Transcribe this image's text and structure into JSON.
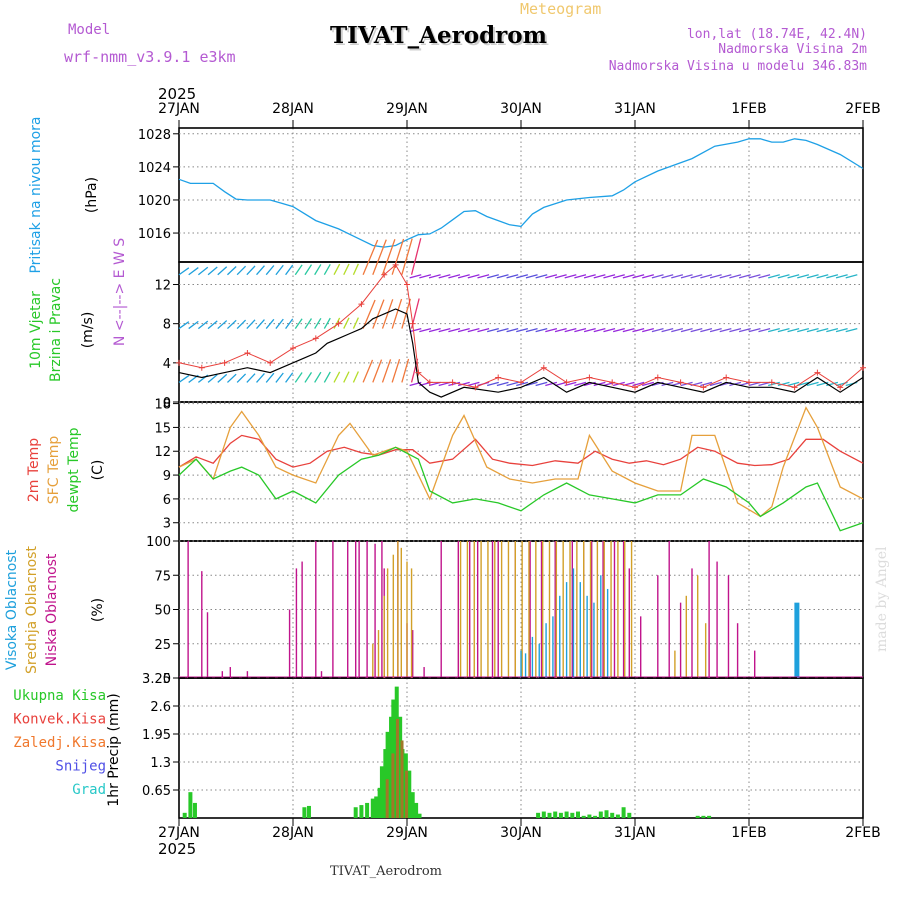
{
  "header": {
    "title": "TIVAT_Aerodrom",
    "subtitle": "Meteogram",
    "model_label": "Model",
    "model_name": "wrf-nmm_v3.9.1  e3km",
    "lonlat": "lon,lat (18.74E, 42.4N)",
    "elev": "Nadmorska Visina 2m",
    "elev_model": "Nadmorska Visina u modelu 346.83m",
    "year": "2025",
    "footer": "TIVAT_Aerodrom",
    "credit": "made by Angel"
  },
  "colors": {
    "pressure": "#1ea0e6",
    "temp2m": "#e8413c",
    "sfc": "#e6a03c",
    "dewpt": "#28c828",
    "windspeed": "#000000",
    "low": "#c0148c",
    "mid": "#d2a028",
    "high": "#1ea0dc",
    "total": "#28c828",
    "conv": "#e8413c",
    "strat": "#f0782d",
    "snow": "#5050e6",
    "grad": "#28c8c8"
  },
  "chart_data": [
    {
      "type": "line",
      "panel": "pressure",
      "ylabel": "Pritisak na nivou mora",
      "unit": "(hPa)",
      "yticks": [
        1016,
        1020,
        1024,
        1028
      ],
      "ylim": [
        1012.5,
        1028.7
      ],
      "xtick_labels": [
        "27JAN",
        "28JAN",
        "29JAN",
        "30JAN",
        "31JAN",
        "1FEB",
        "2FEB"
      ],
      "xlim_days": [
        0,
        6
      ],
      "x": [
        0,
        0.1,
        0.2,
        0.3,
        0.4,
        0.5,
        0.6,
        0.7,
        0.8,
        0.9,
        1.0,
        1.2,
        1.4,
        1.55,
        1.7,
        1.8,
        1.9,
        2.0,
        2.1,
        2.2,
        2.3,
        2.4,
        2.5,
        2.6,
        2.7,
        2.8,
        2.9,
        3.0,
        3.1,
        3.2,
        3.4,
        3.6,
        3.8,
        3.9,
        4.0,
        4.2,
        4.3,
        4.5,
        4.7,
        4.9,
        5.0,
        5.1,
        5.2,
        5.3,
        5.4,
        5.5,
        5.6,
        5.8,
        6.0
      ],
      "values": [
        1022.5,
        1022.0,
        1022.0,
        1022.0,
        1021.0,
        1020.1,
        1020.0,
        1020.0,
        1020.0,
        1019.6,
        1019.2,
        1017.5,
        1016.5,
        1015.5,
        1014.5,
        1014.3,
        1014.5,
        1015.2,
        1015.8,
        1015.9,
        1016.6,
        1017.6,
        1018.6,
        1018.7,
        1018.0,
        1017.5,
        1017.0,
        1016.8,
        1018.3,
        1019.1,
        1020.0,
        1020.3,
        1020.5,
        1021.2,
        1022.2,
        1023.5,
        1024.0,
        1025.0,
        1026.5,
        1027.0,
        1027.4,
        1027.4,
        1027.0,
        1027.0,
        1027.4,
        1027.2,
        1026.7,
        1025.5,
        1023.8
      ]
    },
    {
      "type": "line",
      "panel": "wind",
      "ylabel": "10m Vjetar Brzina i Pravac",
      "unit": "(m/s)",
      "yticks": [
        0,
        4,
        8,
        12
      ],
      "ylim": [
        0,
        14.3
      ],
      "legend_compass": "N <--|--> E W S",
      "series": [
        {
          "name": "wind speed",
          "x": [
            0,
            0.2,
            0.4,
            0.6,
            0.8,
            0.9,
            1.0,
            1.1,
            1.2,
            1.3,
            1.4,
            1.5,
            1.6,
            1.7,
            1.8,
            1.9,
            2.0,
            2.05,
            2.1,
            2.2,
            2.3,
            2.5,
            2.8,
            3.0,
            3.2,
            3.4,
            3.6,
            3.8,
            4.0,
            4.2,
            4.4,
            4.6,
            4.8,
            5.0,
            5.2,
            5.4,
            5.6,
            5.8,
            6.0
          ],
          "values": [
            3.0,
            2.5,
            3.0,
            3.5,
            3.0,
            3.5,
            4.0,
            4.5,
            5.0,
            6.0,
            6.5,
            7.0,
            7.5,
            8.5,
            9.0,
            9.5,
            9.0,
            6.0,
            2.0,
            1.0,
            0.5,
            1.5,
            1.0,
            1.5,
            2.5,
            1.0,
            2.0,
            1.5,
            1.0,
            2.0,
            1.5,
            1.0,
            2.0,
            1.5,
            1.5,
            1.0,
            2.5,
            1.0,
            2.5
          ]
        },
        {
          "name": "gust",
          "x": [
            0,
            0.2,
            0.4,
            0.6,
            0.8,
            1.0,
            1.2,
            1.4,
            1.6,
            1.8,
            1.9,
            2.0,
            2.05,
            2.1,
            2.2,
            2.4,
            2.6,
            2.8,
            3.0,
            3.2,
            3.4,
            3.6,
            3.8,
            4.0,
            4.2,
            4.4,
            4.6,
            4.8,
            5.0,
            5.2,
            5.4,
            5.6,
            5.8,
            6.0
          ],
          "values": [
            4.0,
            3.5,
            4.0,
            5.0,
            4.0,
            5.5,
            6.5,
            8.0,
            10.0,
            13.0,
            14.0,
            12.0,
            8.0,
            3.0,
            2.0,
            2.0,
            1.5,
            2.5,
            2.0,
            3.5,
            2.0,
            2.5,
            2.0,
            1.5,
            2.5,
            2.0,
            1.5,
            2.5,
            2.0,
            2.0,
            1.5,
            3.0,
            1.5,
            3.5
          ]
        }
      ],
      "barb_rows_ms": [
        2,
        7.5,
        13
      ]
    },
    {
      "type": "line",
      "panel": "temperature",
      "ylabel": "2m Temp / SFC Temp / dewpt Temp",
      "unit": "(C)",
      "yticks": [
        3,
        6,
        9,
        12,
        15,
        18
      ],
      "ylim": [
        0.7,
        18.2
      ],
      "series": [
        {
          "name": "2m Temp",
          "x": [
            0,
            0.15,
            0.3,
            0.45,
            0.55,
            0.7,
            0.85,
            1.0,
            1.15,
            1.3,
            1.45,
            1.6,
            1.75,
            1.9,
            2.05,
            2.2,
            2.4,
            2.6,
            2.75,
            2.9,
            3.1,
            3.3,
            3.5,
            3.65,
            3.8,
            3.95,
            4.1,
            4.25,
            4.4,
            4.55,
            4.7,
            4.9,
            5.05,
            5.2,
            5.35,
            5.5,
            5.65,
            5.8,
            6.0
          ],
          "values": [
            10.0,
            11.3,
            10.5,
            13.0,
            14.0,
            13.5,
            11.0,
            10.0,
            10.5,
            12.0,
            12.5,
            11.8,
            11.5,
            12.2,
            12.2,
            10.5,
            11.0,
            13.5,
            11.0,
            10.5,
            10.2,
            10.8,
            10.5,
            12.0,
            11.0,
            10.5,
            10.8,
            10.3,
            11.0,
            12.5,
            12.0,
            10.5,
            10.2,
            10.3,
            11.0,
            13.5,
            13.5,
            12.0,
            10.5
          ]
        },
        {
          "name": "SFC Temp",
          "x": [
            0,
            0.15,
            0.3,
            0.45,
            0.55,
            0.7,
            0.85,
            1.0,
            1.2,
            1.4,
            1.5,
            1.7,
            1.9,
            2.0,
            2.2,
            2.4,
            2.5,
            2.7,
            2.9,
            3.1,
            3.3,
            3.5,
            3.6,
            3.8,
            4.0,
            4.2,
            4.4,
            4.5,
            4.7,
            4.9,
            5.1,
            5.2,
            5.3,
            5.5,
            5.6,
            5.8,
            6.0
          ],
          "values": [
            10.0,
            11.0,
            8.5,
            15.0,
            17.0,
            14.0,
            10.0,
            9.0,
            8.0,
            14.0,
            15.5,
            11.5,
            12.5,
            12.0,
            6.0,
            14.0,
            16.5,
            10.0,
            8.5,
            8.0,
            8.5,
            8.5,
            14.0,
            9.5,
            8.0,
            7.0,
            7.0,
            14.0,
            14.0,
            5.5,
            3.8,
            5.0,
            10.0,
            17.5,
            15.0,
            7.5,
            6.0
          ]
        },
        {
          "name": "dewpt Temp",
          "x": [
            0,
            0.15,
            0.3,
            0.45,
            0.55,
            0.7,
            0.85,
            1.0,
            1.2,
            1.4,
            1.6,
            1.75,
            1.9,
            2.1,
            2.2,
            2.4,
            2.6,
            2.8,
            3.0,
            3.2,
            3.4,
            3.6,
            3.8,
            4.0,
            4.2,
            4.4,
            4.6,
            4.8,
            5.0,
            5.1,
            5.3,
            5.5,
            5.6,
            5.8,
            6.0
          ],
          "values": [
            9.0,
            11.0,
            8.5,
            9.5,
            10.0,
            9.0,
            6.0,
            7.0,
            5.5,
            9.0,
            11.0,
            11.5,
            12.5,
            11.0,
            7.0,
            5.5,
            6.0,
            5.5,
            4.5,
            6.5,
            8.0,
            6.5,
            6.0,
            5.5,
            6.5,
            6.5,
            8.5,
            7.5,
            5.5,
            3.8,
            5.5,
            7.5,
            8.0,
            2.0,
            3.0
          ]
        }
      ]
    },
    {
      "type": "bar",
      "panel": "clouds",
      "ylabel": "Visoka Oblacnost / Srednja Oblacnost / Niska Oblacnost",
      "unit": "(%)",
      "yticks": [
        0,
        25,
        50,
        75,
        100
      ],
      "ylim": [
        0,
        100
      ],
      "series": [
        {
          "name": "Niska Oblacnost",
          "x": [
            0.08,
            0.2,
            0.25,
            0.38,
            0.45,
            0.6,
            0.97,
            1.03,
            1.08,
            1.2,
            1.25,
            1.35,
            1.48,
            1.55,
            1.58,
            1.65,
            1.72,
            1.78,
            1.8,
            1.92,
            2.0,
            2.05,
            2.15,
            2.3,
            2.45,
            2.55,
            2.62,
            2.75,
            2.8,
            2.95,
            3.08,
            3.18,
            3.3,
            3.45,
            3.55,
            3.62,
            3.72,
            3.82,
            3.9,
            3.95,
            4.05,
            4.2,
            4.3,
            4.4,
            4.5,
            4.65,
            4.72,
            4.82,
            4.9,
            5.05
          ],
          "values": [
            100,
            78,
            48,
            5,
            8,
            5,
            50,
            80,
            85,
            100,
            5,
            100,
            100,
            100,
            100,
            100,
            98,
            100,
            80,
            100,
            40,
            35,
            8,
            100,
            100,
            100,
            100,
            100,
            100,
            100,
            100,
            100,
            100,
            100,
            100,
            100,
            100,
            100,
            100,
            80,
            45,
            75,
            100,
            55,
            80,
            100,
            85,
            75,
            40,
            20
          ]
        },
        {
          "name": "Srednja Oblacnost",
          "x": [
            1.7,
            1.75,
            1.8,
            1.83,
            1.88,
            1.92,
            1.95,
            2.0,
            2.04,
            2.47,
            2.53,
            2.59,
            2.65,
            2.71,
            2.77,
            2.83,
            2.89,
            2.95,
            3.01,
            3.07,
            3.13,
            3.19,
            3.25,
            3.31,
            3.37,
            3.43,
            3.49,
            3.55,
            3.61,
            3.67,
            3.73,
            3.79,
            3.85,
            3.91,
            3.97,
            4.35,
            4.45,
            4.55,
            4.62
          ],
          "values": [
            25,
            35,
            60,
            80,
            90,
            100,
            95,
            85,
            80,
            100,
            100,
            100,
            100,
            100,
            100,
            100,
            100,
            100,
            100,
            100,
            100,
            100,
            100,
            100,
            100,
            100,
            100,
            100,
            100,
            100,
            100,
            100,
            100,
            100,
            100,
            20,
            60,
            75,
            40
          ]
        },
        {
          "name": "Visoka Oblacnost",
          "x": [
            3.0,
            3.04,
            3.1,
            3.16,
            3.22,
            3.28,
            3.34,
            3.4,
            3.46,
            3.52,
            3.58,
            3.64,
            3.7,
            3.76,
            5.42
          ],
          "values": [
            20,
            18,
            30,
            25,
            40,
            45,
            60,
            70,
            80,
            70,
            60,
            55,
            75,
            65,
            55
          ]
        }
      ]
    },
    {
      "type": "bar",
      "panel": "precipitation",
      "ylabel": "1hr Precip",
      "unit": "(mm)",
      "yticks": [
        0.65,
        1.3,
        1.95,
        2.6,
        3.25
      ],
      "ylim": [
        0,
        3.25
      ],
      "legend": [
        "Ukupna Kisa",
        "Konvek.Kisa",
        "Zaledj.Kisa",
        "Snijeg",
        "Grad"
      ],
      "series": [
        {
          "name": "Ukupna Kisa",
          "x": [
            0.05,
            0.1,
            0.14,
            1.1,
            1.14,
            1.55,
            1.6,
            1.65,
            1.7,
            1.73,
            1.76,
            1.78,
            1.81,
            1.83,
            1.86,
            1.88,
            1.91,
            1.94,
            1.96,
            1.99,
            2.02,
            2.05,
            2.08,
            2.11,
            3.15,
            3.2,
            3.25,
            3.3,
            3.35,
            3.4,
            3.45,
            3.5,
            3.55,
            3.6,
            3.65,
            3.7,
            3.75,
            3.8,
            3.85,
            3.9,
            3.95,
            4.55,
            4.6,
            4.65
          ],
          "values": [
            0.12,
            0.6,
            0.35,
            0.25,
            0.28,
            0.25,
            0.3,
            0.35,
            0.45,
            0.5,
            0.7,
            1.2,
            1.6,
            2.0,
            2.35,
            2.75,
            3.05,
            2.35,
            1.6,
            1.5,
            1.1,
            0.6,
            0.35,
            0.1,
            0.12,
            0.15,
            0.12,
            0.15,
            0.12,
            0.15,
            0.12,
            0.15,
            0.05,
            0.08,
            0.05,
            0.15,
            0.18,
            0.12,
            0.08,
            0.25,
            0.12,
            0.05,
            0.05,
            0.05
          ]
        },
        {
          "name": "Konvek.Kisa",
          "x": [
            1.8,
            1.85,
            1.89,
            1.93,
            1.97
          ],
          "values": [
            0.9,
            1.5,
            2.3,
            1.8,
            1.1
          ]
        }
      ]
    }
  ]
}
